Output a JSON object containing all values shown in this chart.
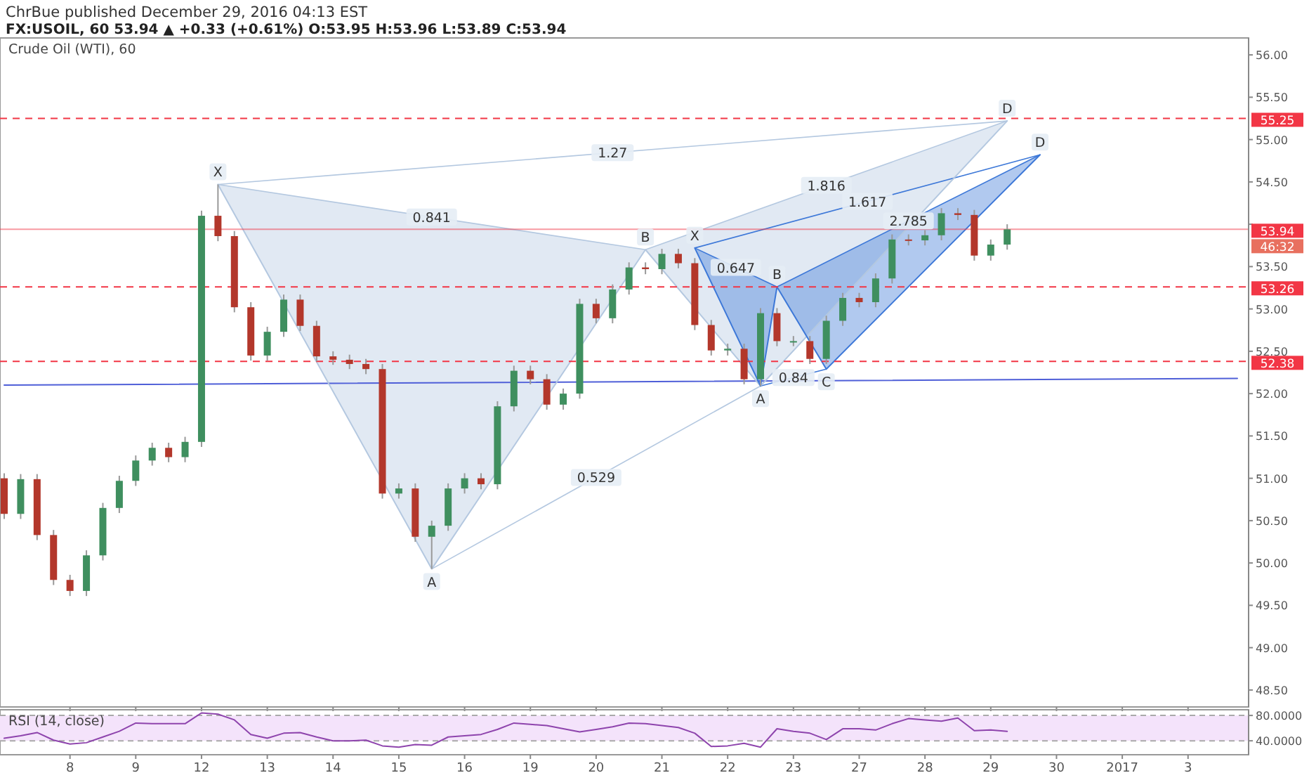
{
  "chart_data": [
    {
      "type": "candlestick",
      "title": "Crude Oil (WTI), 60",
      "subtitle": "FX:USOIL, 60  53.94 ▲ +0.33 (+0.61%) O:53.95 H:53.96 L:53.89 C:53.94",
      "annotations": [
        "ChrBue published December 29, 2016 04:13 EST",
        "46:32",
        "0.841",
        "0.529",
        "1.816",
        "1.27",
        "0.647",
        "0.84",
        "2.785",
        "1.617"
      ],
      "categories": [
        null,
        null,
        null,
        null,
        "8",
        null,
        null,
        null,
        "9",
        null,
        null,
        null,
        "12",
        null,
        null,
        null,
        "13",
        null,
        null,
        null,
        "14",
        null,
        null,
        null,
        "15",
        null,
        null,
        null,
        "16",
        null,
        null,
        null,
        "19",
        null,
        null,
        null,
        "20",
        null,
        null,
        null,
        "21",
        null,
        null,
        null,
        "22",
        null,
        null,
        null,
        "23",
        null,
        null,
        null,
        "27",
        null,
        null,
        null,
        "28",
        null,
        null,
        null,
        "29",
        null,
        null,
        null,
        "30",
        null,
        null,
        null,
        "2017",
        null,
        null,
        null,
        "3",
        null,
        null,
        null
      ],
      "ohlc": [
        [
          51.0,
          51.06,
          50.52,
          50.58
        ],
        [
          50.58,
          51.05,
          50.52,
          50.99
        ],
        [
          50.99,
          51.05,
          50.27,
          50.33
        ],
        [
          50.33,
          50.39,
          49.74,
          49.8
        ],
        [
          49.8,
          49.86,
          49.61,
          49.67
        ],
        [
          49.67,
          50.15,
          49.61,
          50.09
        ],
        [
          50.09,
          50.71,
          50.03,
          50.65
        ],
        [
          50.65,
          51.03,
          50.59,
          50.97
        ],
        [
          50.97,
          51.27,
          50.91,
          51.21
        ],
        [
          51.21,
          51.42,
          51.15,
          51.36
        ],
        [
          51.36,
          51.42,
          51.19,
          51.25
        ],
        [
          51.25,
          51.49,
          51.19,
          51.43
        ],
        [
          51.43,
          54.16,
          51.37,
          54.1
        ],
        [
          54.1,
          54.47,
          53.8,
          53.86
        ],
        [
          53.86,
          53.92,
          52.96,
          53.02
        ],
        [
          53.02,
          53.08,
          52.39,
          52.45
        ],
        [
          52.45,
          52.79,
          52.39,
          52.73
        ],
        [
          52.73,
          53.17,
          52.67,
          53.11
        ],
        [
          53.11,
          53.17,
          52.74,
          52.8
        ],
        [
          52.8,
          52.86,
          52.38,
          52.44
        ],
        [
          52.44,
          52.5,
          52.34,
          52.4
        ],
        [
          52.4,
          52.46,
          52.29,
          52.35
        ],
        [
          52.35,
          52.41,
          52.23,
          52.29
        ],
        [
          52.29,
          52.35,
          50.76,
          50.82
        ],
        [
          50.82,
          50.94,
          50.76,
          50.88
        ],
        [
          50.88,
          50.94,
          50.25,
          50.31
        ],
        [
          50.31,
          50.5,
          49.93,
          50.44
        ],
        [
          50.44,
          50.94,
          50.38,
          50.88
        ],
        [
          50.88,
          51.06,
          50.82,
          51.0
        ],
        [
          51.0,
          51.06,
          50.87,
          50.93
        ],
        [
          50.93,
          51.91,
          50.87,
          51.85
        ],
        [
          51.85,
          52.33,
          51.79,
          52.27
        ],
        [
          52.27,
          52.33,
          52.11,
          52.17
        ],
        [
          52.17,
          52.23,
          51.81,
          51.87
        ],
        [
          51.87,
          52.06,
          51.81,
          52.0
        ],
        [
          52.0,
          53.12,
          51.94,
          53.06
        ],
        [
          53.06,
          53.12,
          52.83,
          52.89
        ],
        [
          52.89,
          53.29,
          52.83,
          53.23
        ],
        [
          53.23,
          53.55,
          53.17,
          53.49
        ],
        [
          53.49,
          53.55,
          53.41,
          53.47
        ],
        [
          53.47,
          53.71,
          53.41,
          53.65
        ],
        [
          53.65,
          53.71,
          53.48,
          53.54
        ],
        [
          53.54,
          53.6,
          52.75,
          52.81
        ],
        [
          52.81,
          52.87,
          52.45,
          52.51
        ],
        [
          52.51,
          52.59,
          52.45,
          52.53
        ],
        [
          52.53,
          52.59,
          52.11,
          52.17
        ],
        [
          52.17,
          53.01,
          52.09,
          52.95
        ],
        [
          52.95,
          53.01,
          52.56,
          52.62
        ],
        [
          52.62,
          52.68,
          52.56,
          52.62
        ],
        [
          52.62,
          52.68,
          52.35,
          52.41
        ],
        [
          52.41,
          52.92,
          52.35,
          52.86
        ],
        [
          52.86,
          53.19,
          52.8,
          53.13
        ],
        [
          53.13,
          53.19,
          53.02,
          53.08
        ],
        [
          53.08,
          53.42,
          53.02,
          53.36
        ],
        [
          53.36,
          53.88,
          53.3,
          53.82
        ],
        [
          53.82,
          53.88,
          53.75,
          53.81
        ],
        [
          53.81,
          53.93,
          53.75,
          53.87
        ],
        [
          53.87,
          54.19,
          53.81,
          54.13
        ],
        [
          54.13,
          54.19,
          54.05,
          54.11
        ],
        [
          54.11,
          54.17,
          53.57,
          53.63
        ],
        [
          53.63,
          53.82,
          53.57,
          53.76
        ],
        [
          53.76,
          54.0,
          53.7,
          53.94
        ],
        null,
        null,
        null,
        null,
        null,
        null,
        null,
        null,
        null,
        null,
        null,
        null,
        null,
        null
      ],
      "series": [
        {
          "type": "line",
          "color": "#4f5fd8",
          "values": [
            52.1,
            null,
            null,
            null,
            null,
            null,
            null,
            null,
            null,
            null,
            null,
            null,
            null,
            null,
            null,
            null,
            null,
            null,
            null,
            null,
            null,
            null,
            null,
            null,
            null,
            null,
            null,
            null,
            null,
            null,
            null,
            null,
            null,
            null,
            null,
            null,
            null,
            null,
            null,
            null,
            null,
            null,
            null,
            null,
            null,
            null,
            null,
            null,
            null,
            null,
            null,
            null,
            null,
            null,
            null,
            null,
            null,
            null,
            null,
            null,
            null,
            null,
            null,
            null,
            null,
            null,
            null,
            null,
            null,
            null,
            null,
            null,
            null,
            null,
            null,
            52.18
          ]
        },
        {
          "type": "line",
          "color": "#b4c8e0",
          "values": [
            null,
            null,
            null,
            null,
            null,
            null,
            null,
            null,
            null,
            null,
            null,
            null,
            null,
            54.47,
            null,
            null,
            null,
            null,
            null,
            null,
            null,
            null,
            null,
            null,
            null,
            null,
            49.93,
            null,
            null,
            null,
            null,
            null,
            null,
            null,
            null,
            null,
            null,
            null,
            null,
            53.7,
            null,
            null,
            null,
            null,
            null,
            null,
            52.09,
            null,
            null,
            null,
            null,
            null,
            null,
            null,
            null,
            null,
            null,
            null,
            null,
            null,
            null,
            55.22,
            null,
            null,
            null,
            null,
            null,
            null,
            null,
            null,
            null,
            null,
            null,
            null,
            null,
            null
          ],
          "value_labels": [
            null,
            null,
            null,
            null,
            null,
            null,
            null,
            null,
            null,
            null,
            null,
            null,
            null,
            "X",
            null,
            null,
            null,
            null,
            null,
            null,
            null,
            null,
            null,
            null,
            null,
            null,
            "A",
            null,
            null,
            null,
            null,
            null,
            null,
            null,
            null,
            null,
            null,
            null,
            null,
            "B",
            null,
            null,
            null,
            null,
            null,
            null,
            null,
            null,
            null,
            null,
            null,
            null,
            null,
            null,
            null,
            null,
            null,
            null,
            null,
            null,
            null,
            "D",
            null,
            null,
            null,
            null,
            null,
            null,
            null,
            null,
            null,
            null,
            null,
            null,
            null,
            null
          ]
        },
        {
          "type": "line",
          "color": "#3d78d8",
          "values": [
            null,
            null,
            null,
            null,
            null,
            null,
            null,
            null,
            null,
            null,
            null,
            null,
            null,
            null,
            null,
            null,
            null,
            null,
            null,
            null,
            null,
            null,
            null,
            null,
            null,
            null,
            null,
            null,
            null,
            null,
            null,
            null,
            null,
            null,
            null,
            null,
            null,
            null,
            null,
            null,
            null,
            null,
            53.72,
            null,
            null,
            null,
            52.09,
            53.26,
            null,
            null,
            52.29,
            null,
            null,
            null,
            null,
            null,
            null,
            null,
            null,
            null,
            null,
            null,
            null,
            54.82,
            null,
            null,
            null,
            null,
            null,
            null,
            null,
            null,
            null,
            null,
            null,
            null
          ],
          "value_labels": [
            null,
            null,
            null,
            null,
            null,
            null,
            null,
            null,
            null,
            null,
            null,
            null,
            null,
            null,
            null,
            null,
            null,
            null,
            null,
            null,
            null,
            null,
            null,
            null,
            null,
            null,
            null,
            null,
            null,
            null,
            null,
            null,
            null,
            null,
            null,
            null,
            null,
            null,
            null,
            null,
            null,
            null,
            "X",
            null,
            null,
            null,
            "A",
            "B",
            null,
            null,
            "C",
            null,
            null,
            null,
            null,
            null,
            null,
            null,
            null,
            null,
            null,
            null,
            null,
            "D",
            null,
            null,
            null,
            null,
            null,
            null,
            null,
            null,
            null,
            null,
            null,
            null
          ]
        }
      ],
      "ref_lines": [
        {
          "axis": "y",
          "value": 55.25,
          "label": "55.25",
          "color": "#f23645",
          "line_style": "dashed"
        },
        {
          "axis": "y",
          "value": 53.94,
          "label": "53.94",
          "color": "#f23645",
          "line_style": "solid"
        },
        {
          "axis": "y",
          "value": 53.26,
          "label": "53.26",
          "color": "#f23645",
          "line_style": "dashed"
        },
        {
          "axis": "y",
          "value": 52.38,
          "label": "52.38",
          "color": "#f23645",
          "line_style": "dashed"
        }
      ],
      "ylim": [
        48.3,
        56.2
      ],
      "yticks": [
        {
          "value": 48.5,
          "label": "48.50"
        },
        {
          "value": 49,
          "label": "49.00"
        },
        {
          "value": 49.5,
          "label": "49.50"
        },
        {
          "value": 50,
          "label": "50.00"
        },
        {
          "value": 50.5,
          "label": "50.50"
        },
        {
          "value": 51,
          "label": "51.00"
        },
        {
          "value": 51.5,
          "label": "51.50"
        },
        {
          "value": 52,
          "label": "52.00"
        },
        {
          "value": 52.5,
          "label": "52.50"
        },
        {
          "value": 53,
          "label": "53.00"
        },
        {
          "value": 53.5,
          "label": "53.50"
        },
        {
          "value": 54,
          "label": null
        },
        {
          "value": 54.5,
          "label": "54.50"
        },
        {
          "value": 55,
          "label": "55.00"
        },
        {
          "value": 55.5,
          "label": "55.50"
        },
        {
          "value": 56,
          "label": "56.00"
        }
      ],
      "tick_labels": "y"
    },
    {
      "type": "line",
      "title": "RSI (14, close)",
      "categories": [
        null,
        null,
        null,
        null,
        "8",
        null,
        null,
        null,
        "9",
        null,
        null,
        null,
        "12",
        null,
        null,
        null,
        "13",
        null,
        null,
        null,
        "14",
        null,
        null,
        null,
        "15",
        null,
        null,
        null,
        "16",
        null,
        null,
        null,
        "19",
        null,
        null,
        null,
        "20",
        null,
        null,
        null,
        "21",
        null,
        null,
        null,
        "22",
        null,
        null,
        null,
        "23",
        null,
        null,
        null,
        "27",
        null,
        null,
        null,
        "28",
        null,
        null,
        null,
        "29",
        null,
        null,
        null,
        "30",
        null,
        null,
        null,
        "2017",
        null,
        null,
        null,
        "3",
        null,
        null,
        null
      ],
      "series": [
        {
          "color": "#8e44ad",
          "values": [
            44,
            48,
            53,
            41,
            35,
            37,
            46,
            55,
            68,
            67,
            67,
            67,
            84,
            82,
            73,
            50,
            44,
            52,
            53,
            46,
            40,
            40,
            41,
            32,
            30,
            34,
            33,
            46,
            48,
            50,
            58,
            68,
            66,
            64,
            59,
            54,
            58,
            62,
            68,
            67,
            64,
            61,
            52,
            31,
            32,
            36,
            30,
            59,
            55,
            52,
            42,
            59,
            59,
            57,
            67,
            75,
            73,
            71,
            76,
            56,
            57,
            55,
            null,
            null,
            null,
            null,
            null,
            null,
            null,
            null,
            null,
            null,
            null,
            null,
            null,
            null
          ]
        }
      ],
      "bands": [
        {
          "axis": "y",
          "from": 40,
          "to": 80,
          "color": "#f4e3fb"
        }
      ],
      "ylim": [
        18,
        89
      ],
      "yticks": [
        {
          "value": 40,
          "label": "40.0000"
        },
        {
          "value": 80,
          "label": "80.0000"
        }
      ]
    }
  ]
}
